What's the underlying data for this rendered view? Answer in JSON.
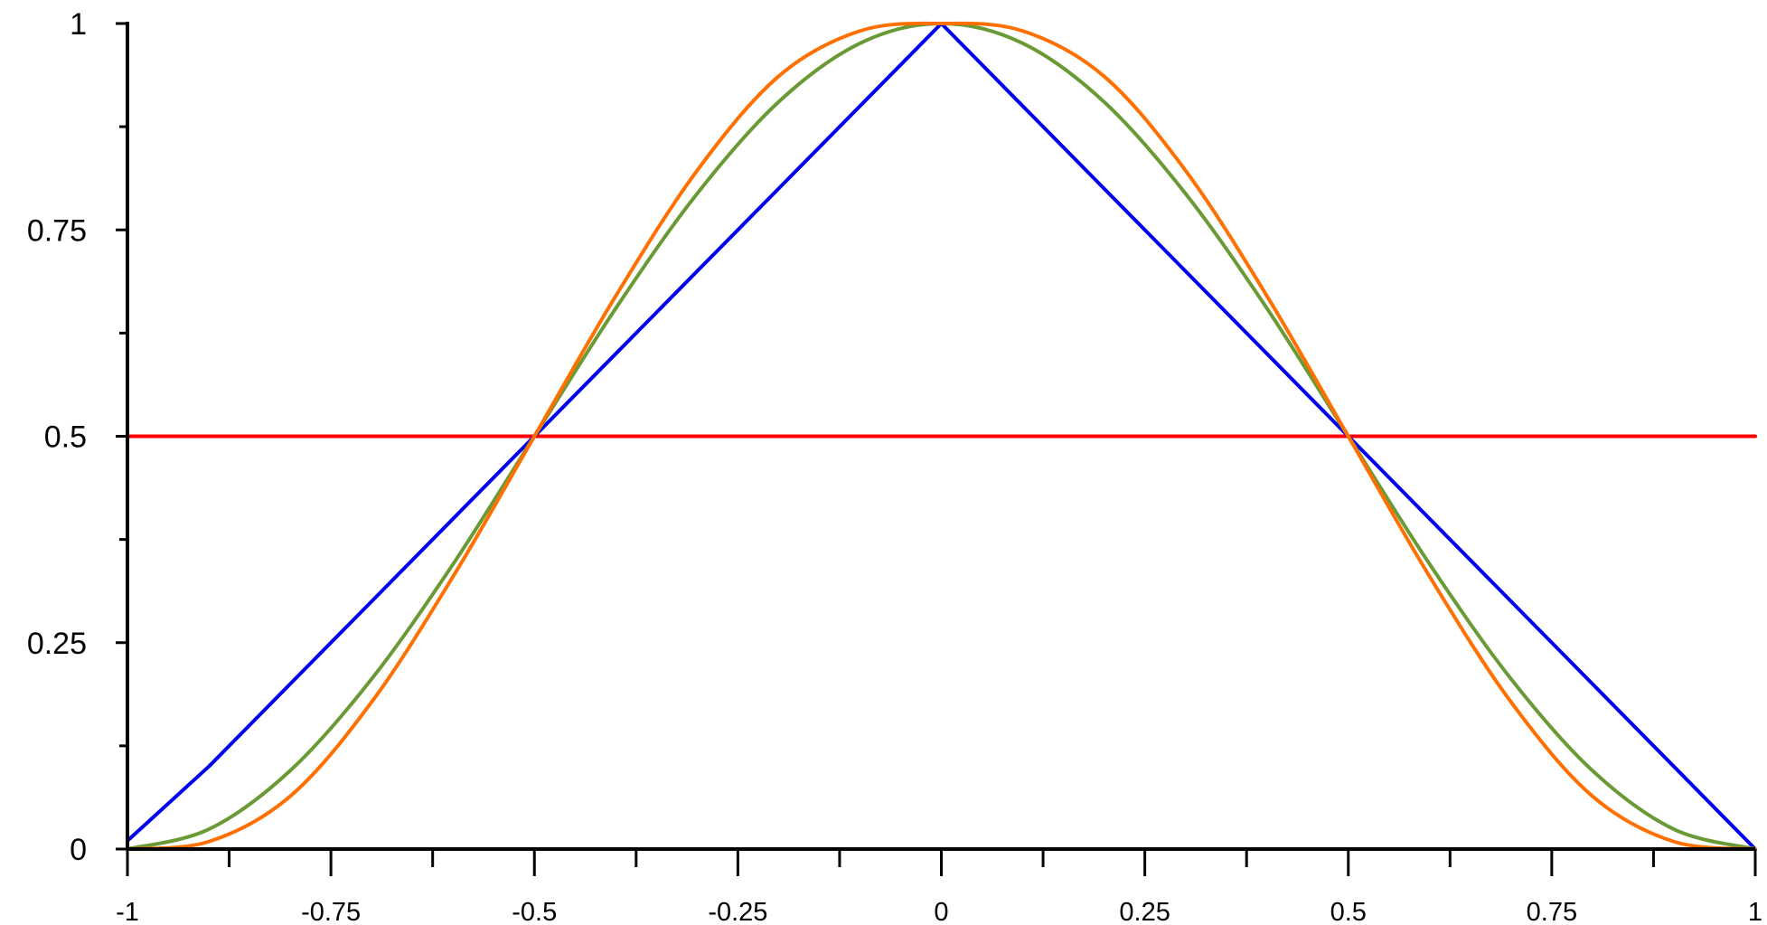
{
  "chart_data": {
    "type": "line",
    "title": "",
    "xlabel": "",
    "ylabel": "",
    "xlim": [
      -1,
      1
    ],
    "ylim": [
      0,
      1
    ],
    "grid": false,
    "legend": "none",
    "x_ticks": [
      {
        "value": -1,
        "label": "-1"
      },
      {
        "value": -0.75,
        "label": "-0.75"
      },
      {
        "value": -0.5,
        "label": "-0.5"
      },
      {
        "value": -0.25,
        "label": "-0.25"
      },
      {
        "value": 0,
        "label": "0"
      },
      {
        "value": 0.25,
        "label": "0.25"
      },
      {
        "value": 0.5,
        "label": "0.5"
      },
      {
        "value": 0.75,
        "label": "0.75"
      },
      {
        "value": 1,
        "label": "1"
      }
    ],
    "x_minor_ticks": [
      -0.875,
      -0.625,
      -0.375,
      -0.125,
      0.125,
      0.375,
      0.625,
      0.875
    ],
    "y_ticks": [
      {
        "value": 0,
        "label": "0"
      },
      {
        "value": 0.25,
        "label": "0.25"
      },
      {
        "value": 0.5,
        "label": "0.5"
      },
      {
        "value": 0.75,
        "label": "0.75"
      },
      {
        "value": 1,
        "label": "1"
      }
    ],
    "y_minor_ticks": [
      0.125,
      0.375,
      0.625,
      0.875
    ],
    "x": [
      -1.0,
      -0.9,
      -0.8,
      -0.7,
      -0.6,
      -0.5,
      -0.4,
      -0.3,
      -0.2,
      -0.1,
      0.0,
      0.1,
      0.2,
      0.3,
      0.4,
      0.5,
      0.6,
      0.7,
      0.8,
      0.9,
      1.0
    ],
    "series": [
      {
        "color": "#ff0000",
        "values": [
          0.5,
          0.5,
          0.5,
          0.5,
          0.5,
          0.5,
          0.5,
          0.5,
          0.5,
          0.5,
          0.5,
          0.5,
          0.5,
          0.5,
          0.5,
          0.5,
          0.5,
          0.5,
          0.5,
          0.5,
          0.5
        ]
      },
      {
        "color": "#0000ee",
        "values": [
          0.01,
          0.1,
          0.2,
          0.3,
          0.4,
          0.5,
          0.6,
          0.7,
          0.8,
          0.9,
          1.0,
          0.9,
          0.8,
          0.7,
          0.6,
          0.5,
          0.4,
          0.3,
          0.2,
          0.1,
          0.0
        ]
      },
      {
        "color": "#6a9a35",
        "values": [
          0.0,
          0.024,
          0.095,
          0.206,
          0.345,
          0.5,
          0.655,
          0.794,
          0.905,
          0.976,
          1.0,
          0.976,
          0.905,
          0.794,
          0.655,
          0.5,
          0.345,
          0.206,
          0.095,
          0.024,
          0.0
        ]
      },
      {
        "color": "#ff7000",
        "values": [
          0.0,
          0.009,
          0.064,
          0.178,
          0.33,
          0.5,
          0.67,
          0.822,
          0.936,
          0.991,
          1.0,
          0.991,
          0.936,
          0.822,
          0.67,
          0.5,
          0.33,
          0.178,
          0.064,
          0.009,
          0.0
        ]
      }
    ]
  }
}
